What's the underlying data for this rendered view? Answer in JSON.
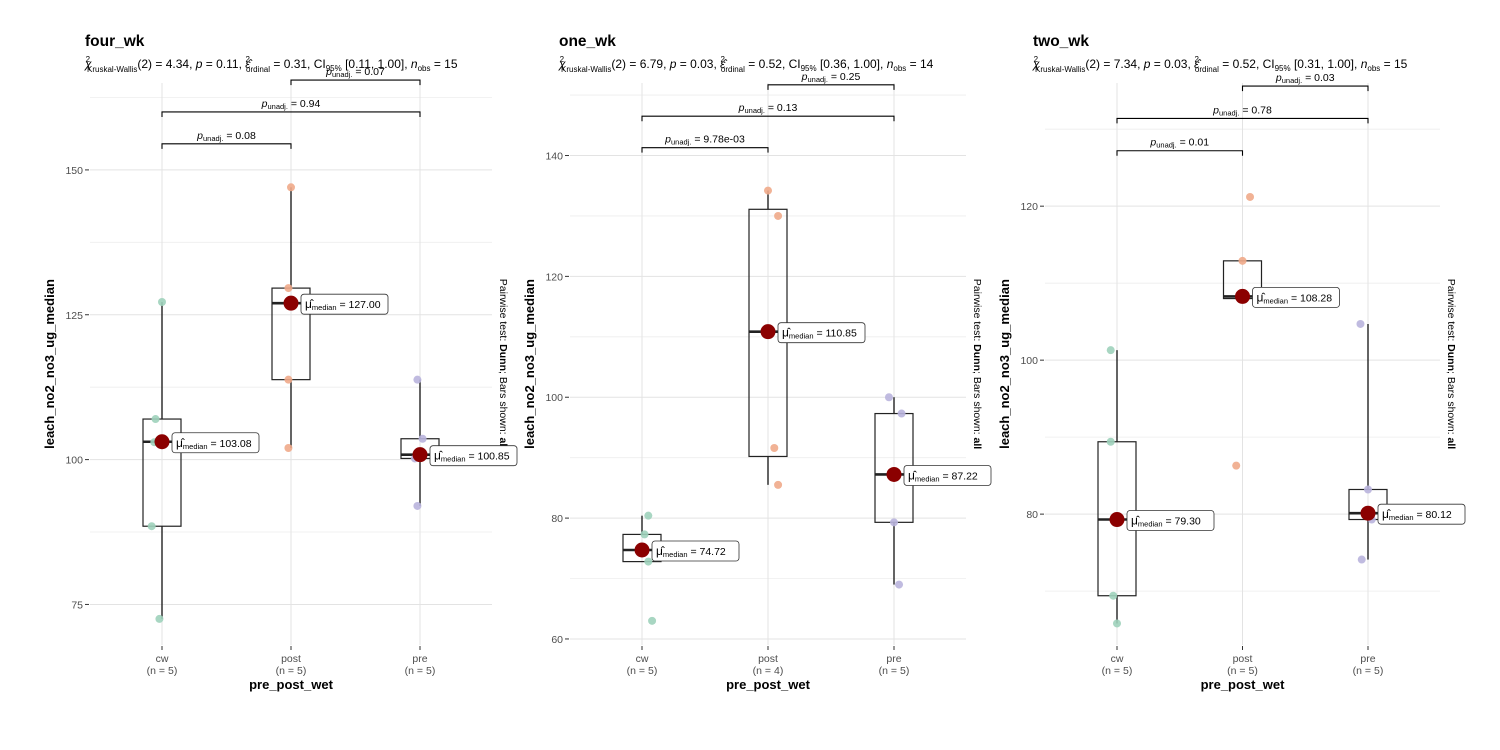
{
  "chart_data": [
    {
      "type": "box",
      "title": "four_wk",
      "stats": {
        "test": "Kruskal-Wallis",
        "df": "2",
        "statistic": "4.34",
        "p": "0.11",
        "effsize_label": "ordinal",
        "effsize": "0.31",
        "ci_level": "95%",
        "ci": "[0.11, 1.00]",
        "n_obs": "15"
      },
      "xlabel": "pre_post_wet",
      "ylabel": "leach_no2_no3_ug_median",
      "side_label_prefix": "Pairwise test: ",
      "side_label_value": "Dunn",
      "side_label_middle": "; Bars shown: ",
      "side_label_bars": "all",
      "ylim": [
        68,
        165
      ],
      "yticks": [
        75,
        100,
        125,
        150
      ],
      "categories": [
        "cw",
        "post",
        "pre"
      ],
      "group_n": [
        "(n = 5)",
        "(n = 5)",
        "(n = 5)"
      ],
      "colors": [
        "#9fd2bb",
        "#f0aa8a",
        "#b9b4dd"
      ],
      "boxes": [
        {
          "q1": 88.5,
          "median": 103.08,
          "q3": 107,
          "lo": 72.5,
          "hi": 127.2
        },
        {
          "q1": 113.8,
          "median": 127.0,
          "q3": 129.6,
          "lo": 102,
          "hi": 147
        },
        {
          "q1": 100.2,
          "median": 100.85,
          "q3": 103.6,
          "lo": 92,
          "hi": 113.8
        }
      ],
      "points": [
        [
          {
            "dx": -0.05,
            "y": 107
          },
          {
            "dx": 0.0,
            "y": 127.2
          },
          {
            "dx": -0.08,
            "y": 88.5
          },
          {
            "dx": -0.02,
            "y": 72.5
          },
          {
            "dx": -0.06,
            "y": 103
          }
        ],
        [
          {
            "dx": 0.0,
            "y": 147
          },
          {
            "dx": -0.02,
            "y": 129.6
          },
          {
            "dx": -0.02,
            "y": 113.8
          },
          {
            "dx": -0.02,
            "y": 102
          },
          {
            "dx": 0.0,
            "y": 127
          }
        ],
        [
          {
            "dx": -0.02,
            "y": 113.8
          },
          {
            "dx": 0.02,
            "y": 103.6
          },
          {
            "dx": -0.02,
            "y": 92
          },
          {
            "dx": 0.0,
            "y": 100.8
          },
          {
            "dx": -0.04,
            "y": 100.2
          }
        ]
      ],
      "median_labels": [
        "103.08",
        "127.00",
        "100.85"
      ],
      "brackets": [
        {
          "from": 0,
          "to": 1,
          "y": 154.5,
          "p": "0.08"
        },
        {
          "from": 0,
          "to": 2,
          "y": 160,
          "p": "0.94"
        },
        {
          "from": 1,
          "to": 2,
          "y": 165.5,
          "p": "0.07"
        }
      ]
    },
    {
      "type": "box",
      "title": "one_wk",
      "stats": {
        "test": "Kruskal-Wallis",
        "df": "2",
        "statistic": "6.79",
        "p": "0.03",
        "effsize_label": "ordinal",
        "effsize": "0.52",
        "ci_level": "95%",
        "ci": "[0.36, 1.00]",
        "n_obs": "14"
      },
      "xlabel": "pre_post_wet",
      "ylabel": "leach_no2_no3_ug_median",
      "side_label_prefix": "Pairwise test: ",
      "side_label_value": "Dunn",
      "side_label_middle": "; Bars shown: ",
      "side_label_bars": "all",
      "ylim": [
        59,
        152
      ],
      "yticks": [
        60,
        80,
        100,
        120,
        140
      ],
      "categories": [
        "cw",
        "post",
        "pre"
      ],
      "group_n": [
        "(n = 5)",
        "(n = 4)",
        "(n = 5)"
      ],
      "colors": [
        "#9fd2bb",
        "#f0aa8a",
        "#b9b4dd"
      ],
      "boxes": [
        {
          "q1": 72.8,
          "median": 74.72,
          "q3": 77.3,
          "lo": 72.8,
          "hi": 80.4
        },
        {
          "q1": 90.2,
          "median": 110.85,
          "q3": 131.1,
          "lo": 85.5,
          "hi": 134.2
        },
        {
          "q1": 79.3,
          "median": 87.22,
          "q3": 97.3,
          "lo": 69,
          "hi": 100
        }
      ],
      "points": [
        [
          {
            "dx": 0.05,
            "y": 80.4
          },
          {
            "dx": 0.02,
            "y": 77.3
          },
          {
            "dx": 0.05,
            "y": 72.8
          },
          {
            "dx": 0.08,
            "y": 63
          },
          {
            "dx": 0.0,
            "y": 74.7
          }
        ],
        [
          {
            "dx": 0.0,
            "y": 134.2
          },
          {
            "dx": 0.08,
            "y": 130
          },
          {
            "dx": 0.05,
            "y": 91.6
          },
          {
            "dx": 0.08,
            "y": 85.5
          }
        ],
        [
          {
            "dx": -0.04,
            "y": 100
          },
          {
            "dx": 0.06,
            "y": 97.3
          },
          {
            "dx": 0.0,
            "y": 79.3
          },
          {
            "dx": 0.04,
            "y": 69
          },
          {
            "dx": 0.0,
            "y": 87.2
          }
        ]
      ],
      "median_labels": [
        "74.72",
        "110.85",
        "87.22"
      ],
      "brackets": [
        {
          "from": 0,
          "to": 1,
          "y": 141.3,
          "p": "9.78e-03"
        },
        {
          "from": 0,
          "to": 2,
          "y": 146.5,
          "p": "0.13"
        },
        {
          "from": 1,
          "to": 2,
          "y": 151.7,
          "p": "0.25"
        }
      ]
    },
    {
      "type": "box",
      "title": "two_wk",
      "stats": {
        "test": "Kruskal-Wallis",
        "df": "2",
        "statistic": "7.34",
        "p": "0.03",
        "effsize_label": "ordinal",
        "effsize": "0.52",
        "ci_level": "95%",
        "ci": "[0.31, 1.00]",
        "n_obs": "15"
      },
      "xlabel": "pre_post_wet",
      "ylabel": "leach_no2_no3_ug_median",
      "side_label_prefix": "Pairwise test: ",
      "side_label_value": "Dunn",
      "side_label_middle": "; Bars shown: ",
      "side_label_bars": "all",
      "ylim": [
        63,
        136
      ],
      "yticks": [
        80,
        100,
        120
      ],
      "categories": [
        "cw",
        "post",
        "pre"
      ],
      "group_n": [
        "(n = 5)",
        "(n = 5)",
        "(n = 5)"
      ],
      "colors": [
        "#9fd2bb",
        "#f0aa8a",
        "#b9b4dd"
      ],
      "boxes": [
        {
          "q1": 69.4,
          "median": 79.3,
          "q3": 89.4,
          "lo": 65.8,
          "hi": 101.3
        },
        {
          "q1": 108,
          "median": 108.28,
          "q3": 112.9,
          "lo": 108,
          "hi": 112.9
        },
        {
          "q1": 79.3,
          "median": 80.12,
          "q3": 83.2,
          "lo": 74.1,
          "hi": 104.7
        }
      ],
      "points": [
        [
          {
            "dx": -0.05,
            "y": 101.3
          },
          {
            "dx": -0.05,
            "y": 89.4
          },
          {
            "dx": -0.03,
            "y": 69.4
          },
          {
            "dx": 0.0,
            "y": 65.8
          },
          {
            "dx": 0.0,
            "y": 79.3
          }
        ],
        [
          {
            "dx": 0.06,
            "y": 121.2
          },
          {
            "dx": 0.0,
            "y": 112.9
          },
          {
            "dx": 0.0,
            "y": 108.2
          },
          {
            "dx": -0.05,
            "y": 86.3
          },
          {
            "dx": 0.02,
            "y": 108.3
          }
        ],
        [
          {
            "dx": -0.06,
            "y": 104.7
          },
          {
            "dx": 0.0,
            "y": 83.2
          },
          {
            "dx": 0.0,
            "y": 80.1
          },
          {
            "dx": 0.03,
            "y": 79.3
          },
          {
            "dx": -0.05,
            "y": 74.1
          }
        ]
      ],
      "median_labels": [
        "79.30",
        "108.28",
        "80.12"
      ],
      "brackets": [
        {
          "from": 0,
          "to": 1,
          "y": 127.2,
          "p": "0.01"
        },
        {
          "from": 0,
          "to": 2,
          "y": 131.4,
          "p": "0.78"
        },
        {
          "from": 1,
          "to": 2,
          "y": 135.6,
          "p": "0.03"
        }
      ]
    }
  ]
}
